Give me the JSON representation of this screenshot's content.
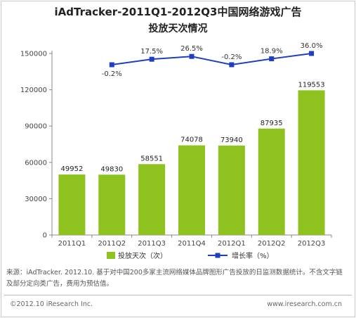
{
  "chart_data": {
    "type": "bar",
    "title": "iAdTracker-2011Q1-2012Q3中国网络游戏广告",
    "subtitle": "投放天次情况",
    "categories": [
      "2011Q1",
      "2011Q2",
      "2011Q3",
      "2011Q4",
      "2012Q1",
      "2012Q2",
      "2012Q3"
    ],
    "series": [
      {
        "name": "投放天次（次）",
        "kind": "bar",
        "color": "#8dc21f",
        "values": [
          49952,
          49830,
          58551,
          74078,
          73940,
          87935,
          119553
        ]
      },
      {
        "name": "增长率（%）",
        "kind": "line",
        "color": "#1f3fbf",
        "values": [
          null,
          -0.2,
          17.5,
          26.5,
          -0.2,
          18.9,
          36.0
        ],
        "labels": [
          "",
          "-0.2%",
          "17.5%",
          "26.5%",
          "-0.2%",
          "18.9%",
          "36.0%"
        ]
      }
    ],
    "y_ticks": [
      "0",
      "30000",
      "60000",
      "90000",
      "120000",
      "150000"
    ],
    "ylim": [
      0,
      150000
    ],
    "legend_position": "bottom",
    "grid": false
  },
  "source_note": "来源：iAdTracker. 2012.10. 基于对中国200多家主流网络媒体品牌图形广告投放的日监测数据统计。不含文字链及部分定向类广告，费用为预估值。",
  "footer": {
    "copyright": "©2012.10 iResearch Inc.",
    "website": "www.iresearch.com.cn"
  }
}
